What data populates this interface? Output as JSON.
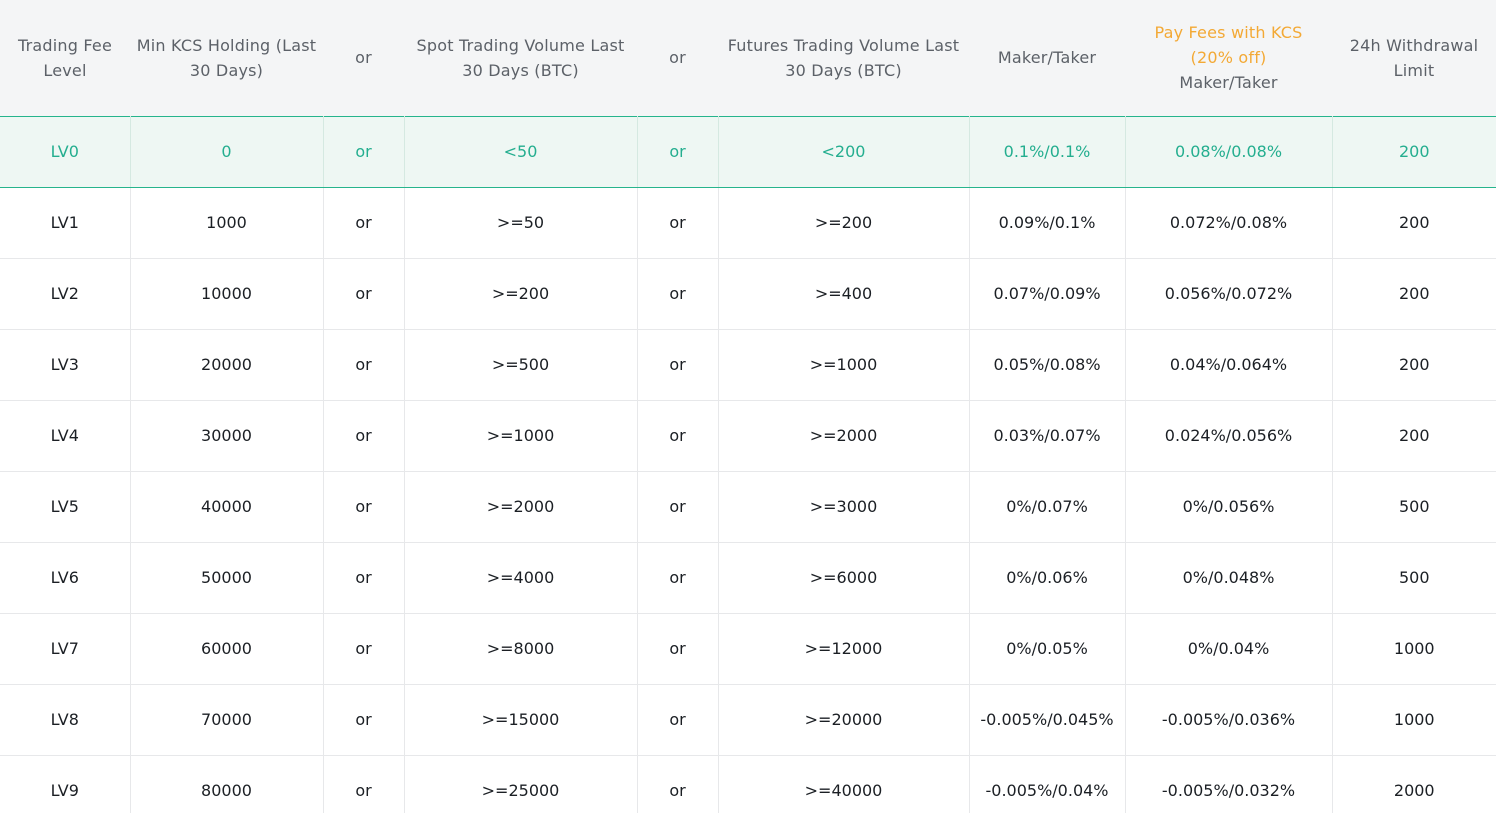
{
  "table": {
    "headers": {
      "level": "Trading Fee Level",
      "kcs_holding": "Min KCS Holding (Last 30 Days)",
      "or1": "or",
      "spot_volume": "Spot Trading Volume Last 30 Days (BTC)",
      "or2": "or",
      "futures_volume": "Futures Trading Volume Last 30 Days (BTC)",
      "maker_taker": "Maker/Taker",
      "pay_kcs_highlight": "Pay Fees with KCS (20% off)",
      "pay_kcs_sub": "Maker/Taker",
      "withdrawal": "24h Withdrawal Limit"
    },
    "highlight_color": "#f3a935",
    "current_row_color": "#24ae8f",
    "rows": [
      {
        "level": "LV0",
        "kcs": "0",
        "or1": "or",
        "spot": "<50",
        "or2": "or",
        "futures": "<200",
        "maker_taker": "0.1%/0.1%",
        "kcs_fee": "0.08%/0.08%",
        "withdrawal": "200"
      },
      {
        "level": "LV1",
        "kcs": "1000",
        "or1": "or",
        "spot": ">=50",
        "or2": "or",
        "futures": ">=200",
        "maker_taker": "0.09%/0.1%",
        "kcs_fee": "0.072%/0.08%",
        "withdrawal": "200"
      },
      {
        "level": "LV2",
        "kcs": "10000",
        "or1": "or",
        "spot": ">=200",
        "or2": "or",
        "futures": ">=400",
        "maker_taker": "0.07%/0.09%",
        "kcs_fee": "0.056%/0.072%",
        "withdrawal": "200"
      },
      {
        "level": "LV3",
        "kcs": "20000",
        "or1": "or",
        "spot": ">=500",
        "or2": "or",
        "futures": ">=1000",
        "maker_taker": "0.05%/0.08%",
        "kcs_fee": "0.04%/0.064%",
        "withdrawal": "200"
      },
      {
        "level": "LV4",
        "kcs": "30000",
        "or1": "or",
        "spot": ">=1000",
        "or2": "or",
        "futures": ">=2000",
        "maker_taker": "0.03%/0.07%",
        "kcs_fee": "0.024%/0.056%",
        "withdrawal": "200"
      },
      {
        "level": "LV5",
        "kcs": "40000",
        "or1": "or",
        "spot": ">=2000",
        "or2": "or",
        "futures": ">=3000",
        "maker_taker": "0%/0.07%",
        "kcs_fee": "0%/0.056%",
        "withdrawal": "500"
      },
      {
        "level": "LV6",
        "kcs": "50000",
        "or1": "or",
        "spot": ">=4000",
        "or2": "or",
        "futures": ">=6000",
        "maker_taker": "0%/0.06%",
        "kcs_fee": "0%/0.048%",
        "withdrawal": "500"
      },
      {
        "level": "LV7",
        "kcs": "60000",
        "or1": "or",
        "spot": ">=8000",
        "or2": "or",
        "futures": ">=12000",
        "maker_taker": "0%/0.05%",
        "kcs_fee": "0%/0.04%",
        "withdrawal": "1000"
      },
      {
        "level": "LV8",
        "kcs": "70000",
        "or1": "or",
        "spot": ">=15000",
        "or2": "or",
        "futures": ">=20000",
        "maker_taker": "-0.005%/0.045%",
        "kcs_fee": "-0.005%/0.036%",
        "withdrawal": "1000"
      },
      {
        "level": "LV9",
        "kcs": "80000",
        "or1": "or",
        "spot": ">=25000",
        "or2": "or",
        "futures": ">=40000",
        "maker_taker": "-0.005%/0.04%",
        "kcs_fee": "-0.005%/0.032%",
        "withdrawal": "2000"
      }
    ]
  }
}
